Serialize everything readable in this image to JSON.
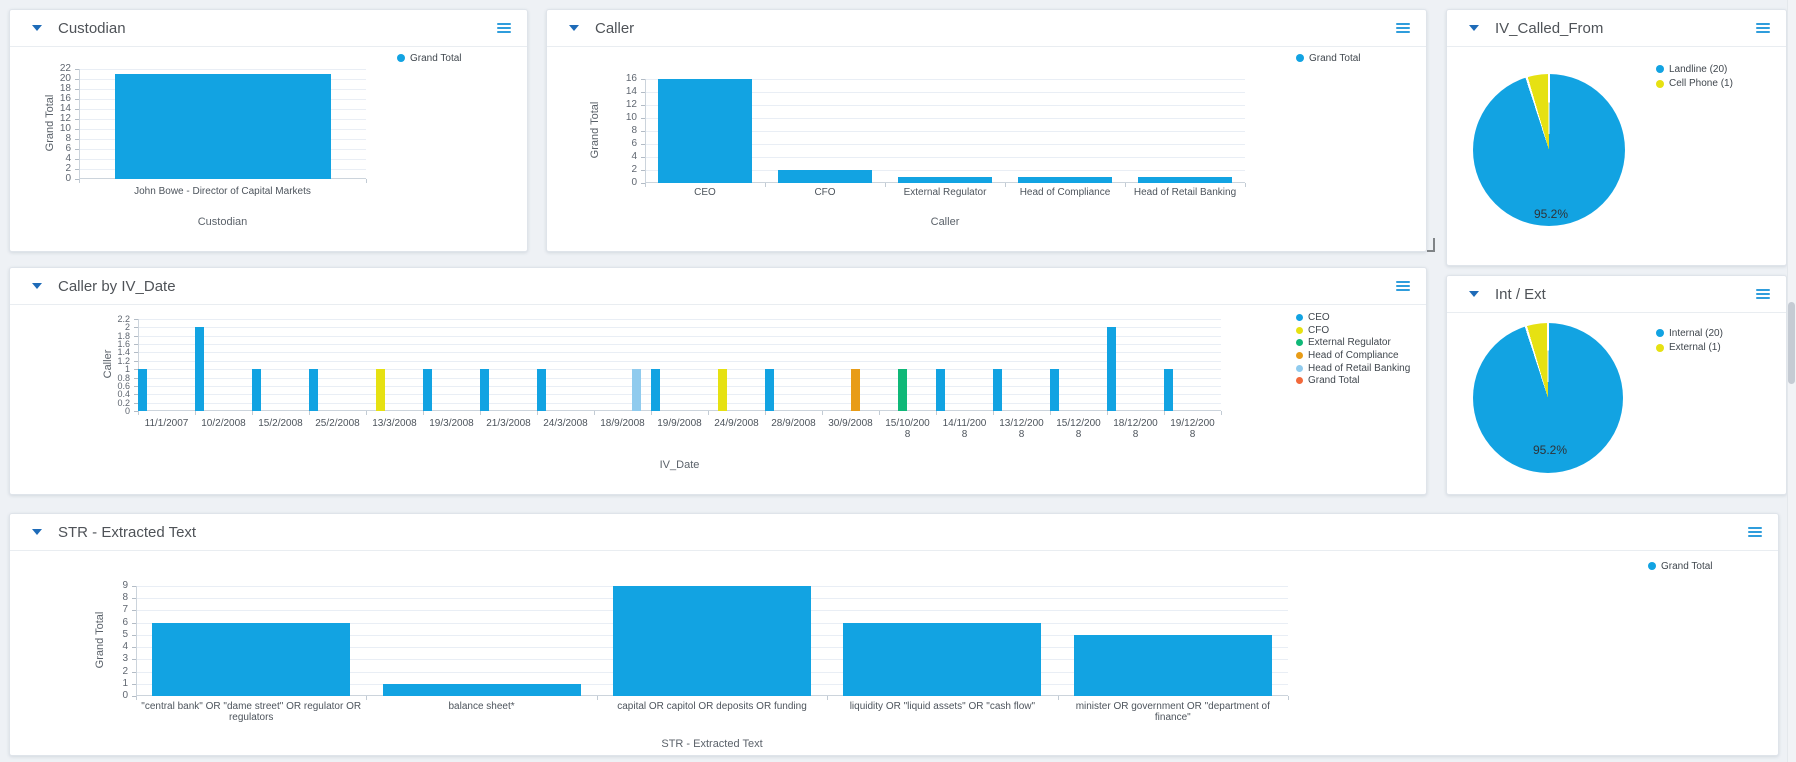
{
  "colors": {
    "bar_blue": "#12A3E2",
    "cfo_yellow": "#E6E112",
    "ext_reg_green": "#0FB878",
    "compliance_orange": "#E89C17",
    "retail_light_blue": "#90CBEE",
    "grand_total_orange": "#F2693B",
    "accent_blue": "#1E6BB8",
    "menu_icon_blue": "#2F9DDC"
  },
  "panels": {
    "custodian": {
      "title": "Custodian"
    },
    "caller": {
      "title": "Caller"
    },
    "iv_called_from": {
      "title": "IV_Called_From"
    },
    "caller_by_iv_date": {
      "title": "Caller by IV_Date"
    },
    "int_ext": {
      "title": "Int / Ext"
    },
    "str_extracted_text": {
      "title": "STR - Extracted Text"
    }
  },
  "chart_data": [
    {
      "panel": "custodian",
      "type": "bar",
      "title": "Custodian",
      "xlabel": "Custodian",
      "ylabel": "Grand Total",
      "ylim": [
        0,
        22
      ],
      "ystep": 2,
      "grid": true,
      "legend_position": "top-right",
      "categories": [
        "John Bowe - Director of Capital Markets"
      ],
      "values": [
        21
      ],
      "bar_color": "#12A3E2",
      "legend": [
        {
          "label": "Grand Total",
          "color": "#12A3E2"
        }
      ]
    },
    {
      "panel": "caller",
      "type": "bar",
      "title": "Caller",
      "xlabel": "Caller",
      "ylabel": "Grand Total",
      "ylim": [
        0,
        16
      ],
      "ystep": 2,
      "grid": true,
      "legend_position": "top-right",
      "categories": [
        "CEO",
        "CFO",
        "External Regulator",
        "Head of Compliance",
        "Head of Retail Banking"
      ],
      "values": [
        16,
        2,
        1,
        1,
        1
      ],
      "bar_color": "#12A3E2",
      "legend": [
        {
          "label": "Grand Total",
          "color": "#12A3E2"
        }
      ]
    },
    {
      "panel": "iv_called_from",
      "type": "pie",
      "title": "IV_Called_From",
      "legend_position": "right",
      "slices": [
        {
          "label": "Landline (20)",
          "value": 20,
          "color": "#12A3E2"
        },
        {
          "label": "Cell Phone (1)",
          "value": 1,
          "color": "#E6E112"
        }
      ],
      "data_label": "95.2%"
    },
    {
      "panel": "caller_by_iv_date",
      "type": "bar",
      "grouped": true,
      "title": "Caller by IV_Date",
      "xlabel": "IV_Date",
      "ylabel": "Caller",
      "ylim": [
        0,
        2.2
      ],
      "ystep": 0.2,
      "grid": true,
      "legend_position": "right",
      "series": [
        {
          "name": "CEO",
          "color": "#12A3E2"
        },
        {
          "name": "CFO",
          "color": "#E6E112"
        },
        {
          "name": "External Regulator",
          "color": "#0FB878"
        },
        {
          "name": "Head of Compliance",
          "color": "#E89C17"
        },
        {
          "name": "Head of Retail Banking",
          "color": "#90CBEE"
        },
        {
          "name": "Grand Total",
          "color": "#F2693B"
        }
      ],
      "categories": [
        "11/1/2007",
        "10/2/2008",
        "15/2/2008",
        "25/2/2008",
        "13/3/2008",
        "19/3/2008",
        "21/3/2008",
        "24/3/2008",
        "18/9/2008",
        "19/9/2008",
        "24/9/2008",
        "28/9/2008",
        "30/9/2008",
        "15/10/200\n8",
        "14/11/200\n8",
        "13/12/200\n8",
        "15/12/200\n8",
        "18/12/200\n8",
        "19/12/200\n8"
      ],
      "points": [
        {
          "cat": 0,
          "series": 0,
          "value": 1
        },
        {
          "cat": 1,
          "series": 0,
          "value": 2
        },
        {
          "cat": 2,
          "series": 0,
          "value": 1
        },
        {
          "cat": 3,
          "series": 0,
          "value": 1
        },
        {
          "cat": 4,
          "series": 1,
          "value": 1
        },
        {
          "cat": 5,
          "series": 0,
          "value": 1
        },
        {
          "cat": 6,
          "series": 0,
          "value": 1
        },
        {
          "cat": 7,
          "series": 0,
          "value": 1
        },
        {
          "cat": 8,
          "series": 4,
          "value": 1
        },
        {
          "cat": 9,
          "series": 0,
          "value": 1
        },
        {
          "cat": 10,
          "series": 1,
          "value": 1
        },
        {
          "cat": 11,
          "series": 0,
          "value": 1
        },
        {
          "cat": 12,
          "series": 3,
          "value": 1
        },
        {
          "cat": 13,
          "series": 2,
          "value": 1
        },
        {
          "cat": 14,
          "series": 0,
          "value": 1
        },
        {
          "cat": 15,
          "series": 0,
          "value": 1
        },
        {
          "cat": 16,
          "series": 0,
          "value": 1
        },
        {
          "cat": 17,
          "series": 0,
          "value": 2
        },
        {
          "cat": 18,
          "series": 0,
          "value": 1
        }
      ]
    },
    {
      "panel": "int_ext",
      "type": "pie",
      "title": "Int / Ext",
      "legend_position": "right",
      "slices": [
        {
          "label": "Internal (20)",
          "value": 20,
          "color": "#12A3E2"
        },
        {
          "label": "External (1)",
          "value": 1,
          "color": "#E6E112"
        }
      ],
      "data_label": "95.2%"
    },
    {
      "panel": "str_extracted_text",
      "type": "bar",
      "title": "STR - Extracted Text",
      "xlabel": "STR - Extracted Text",
      "ylabel": "Grand Total",
      "ylim": [
        0,
        9
      ],
      "ystep": 1,
      "grid": true,
      "legend_position": "top-right",
      "categories": [
        "\"central bank\" OR \"dame street\" OR regulator OR\nregulators",
        "balance sheet*",
        "capital OR capitol OR deposits OR funding",
        "liquidity OR \"liquid assets\" OR \"cash flow\"",
        "minister OR government OR \"department of finance\""
      ],
      "values": [
        6,
        1,
        9,
        6,
        5
      ],
      "bar_color": "#12A3E2",
      "legend": [
        {
          "label": "Grand Total",
          "color": "#12A3E2"
        }
      ]
    }
  ]
}
